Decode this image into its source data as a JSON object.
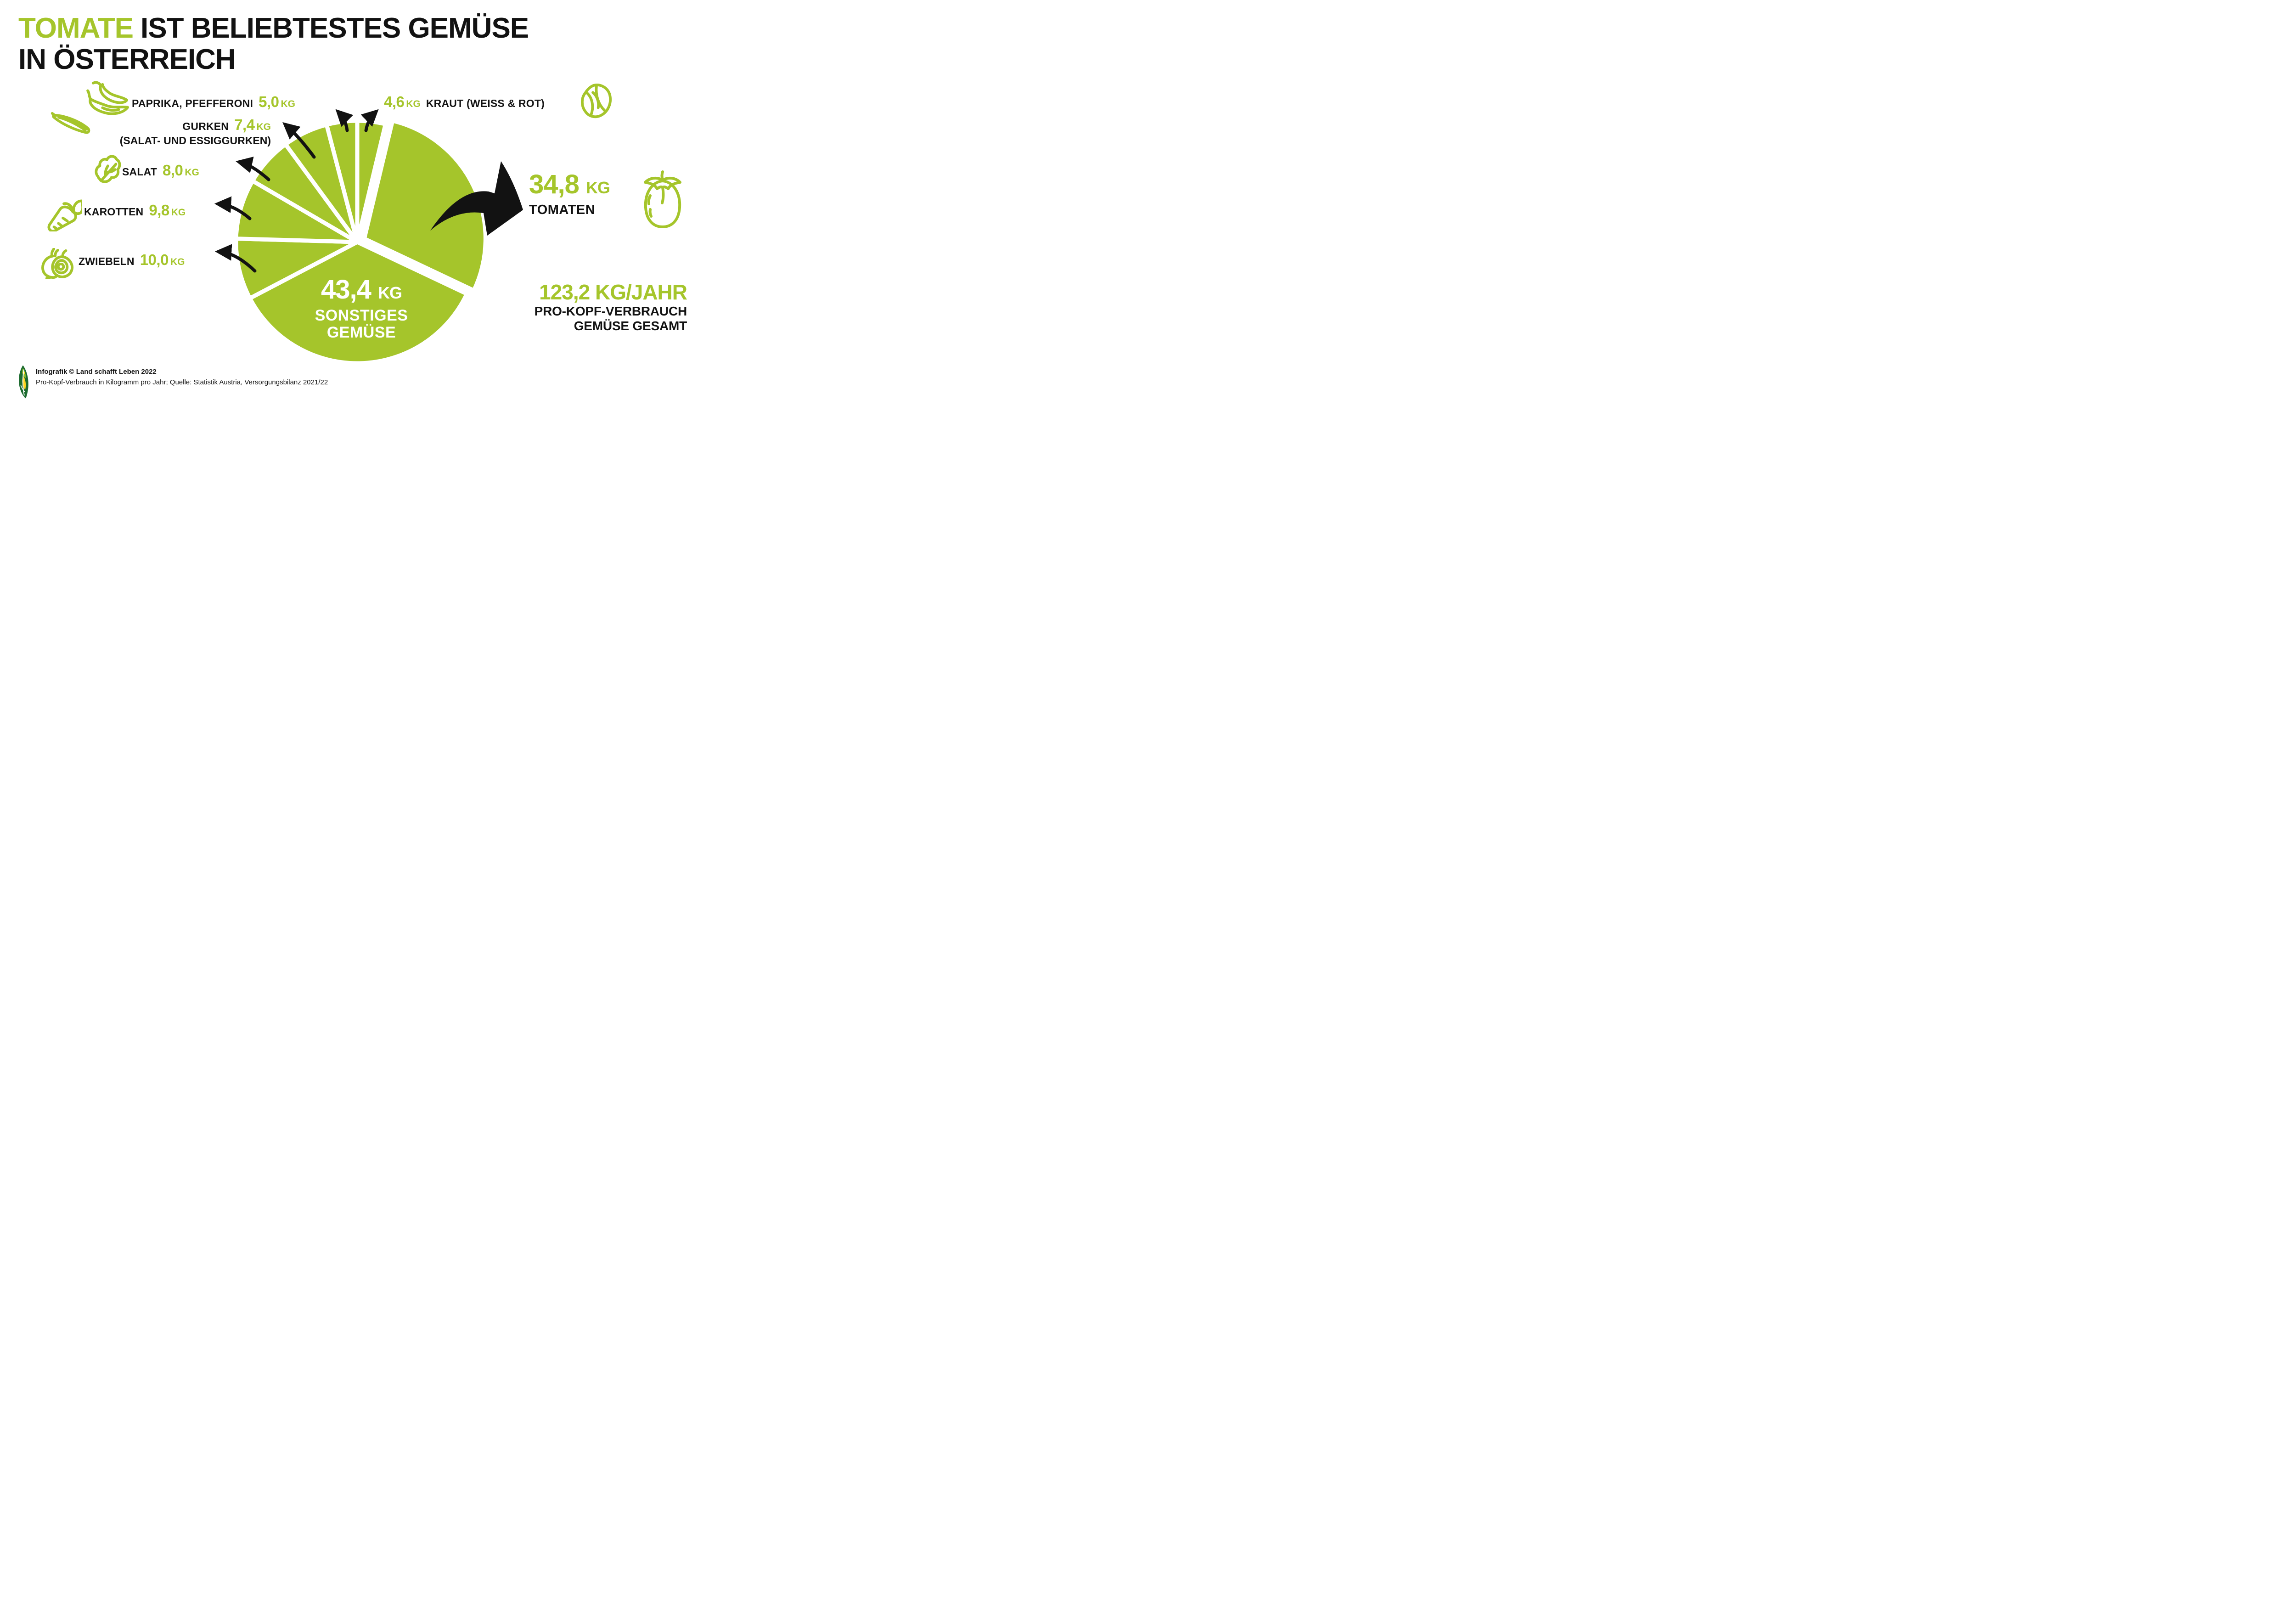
{
  "colors": {
    "green": "#A5C52B",
    "black": "#121212",
    "white": "#FFFFFF"
  },
  "title": {
    "highlight": "TOMATE",
    "rest": "IST BELIEBTESTES GEMÜSE",
    "line2": "IN ÖSTERREICH"
  },
  "chart_data": {
    "type": "pie",
    "title": "Tomate ist beliebtestes Gemüse in Österreich",
    "unit": "kg pro Kopf und Jahr",
    "total_display": "123,2",
    "start_angle_deg": 0,
    "direction": "clockwise",
    "slice_color": "#A5C52B",
    "separator_color": "#FFFFFF",
    "slices": [
      {
        "key": "kraut",
        "label": "KRAUT (WEISS & ROT)",
        "value": 4.6,
        "display": "4,6"
      },
      {
        "key": "tomaten",
        "label": "TOMATEN",
        "value": 34.8,
        "display": "34,8",
        "explode": true
      },
      {
        "key": "sonstiges",
        "label": "SONSTIGES GEMÜSE",
        "value": 43.4,
        "display": "43,4"
      },
      {
        "key": "zwiebeln",
        "label": "ZWIEBELN",
        "value": 10.0,
        "display": "10,0"
      },
      {
        "key": "karotten",
        "label": "KAROTTEN",
        "value": 9.8,
        "display": "9,8"
      },
      {
        "key": "salat",
        "label": "SALAT",
        "value": 8.0,
        "display": "8,0"
      },
      {
        "key": "gurken",
        "label": "GURKEN (SALAT- UND ESSIGGURKEN)",
        "value": 7.4,
        "display": "7,4"
      },
      {
        "key": "paprika",
        "label": "PAPRIKA, PFEFFERONI",
        "value": 5.0,
        "display": "5,0"
      }
    ]
  },
  "callouts": {
    "paprika": {
      "label": "PAPRIKA, PFEFFERONI",
      "value": "5,0",
      "unit": "KG"
    },
    "kraut": {
      "value": "4,6",
      "unit": "KG",
      "label": "KRAUT (WEISS & ROT)"
    },
    "gurken": {
      "label": "GURKEN",
      "value": "7,4",
      "unit": "KG",
      "sub": "(SALAT- UND ESSIGGURKEN)"
    },
    "salat": {
      "label": "SALAT",
      "value": "8,0",
      "unit": "KG"
    },
    "karotten": {
      "label": "KAROTTEN",
      "value": "9,8",
      "unit": "KG"
    },
    "zwiebeln": {
      "label": "ZWIEBELN",
      "value": "10,0",
      "unit": "KG"
    },
    "tomaten": {
      "value": "34,8",
      "unit": "KG",
      "label": "TOMATEN"
    },
    "center": {
      "value": "43,4",
      "unit": "KG",
      "line1": "SONSTIGES",
      "line2": "GEMÜSE"
    }
  },
  "total_box": {
    "headline": "123,2 KG/JAHR",
    "line1": "PRO-KOPF-VERBRAUCH",
    "line2": "GEMÜSE GESAMT"
  },
  "footer": {
    "line1": "Infografik © Land schafft Leben 2022",
    "line2": "Pro-Kopf-Verbrauch in Kilogramm pro Jahr; Quelle: Statistik Austria, Versorgungsbilanz 2021/22"
  }
}
